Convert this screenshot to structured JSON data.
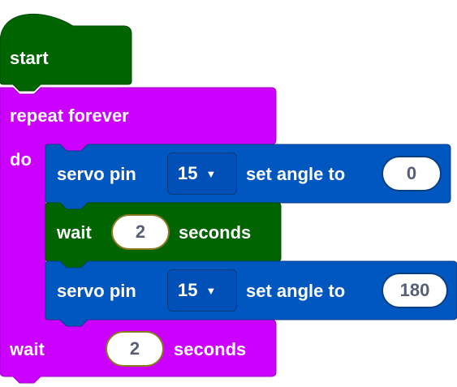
{
  "colors": {
    "event": "#006400",
    "loop": "#cc00ff",
    "servo": "#0057bf",
    "number_text": "#575e75"
  },
  "start_block": {
    "label": "start"
  },
  "repeat_block": {
    "label": "repeat forever",
    "do_label": "do"
  },
  "servo_block_1": {
    "label": "servo pin",
    "pin": "15",
    "set_label": "set angle to",
    "angle": "0"
  },
  "wait_block_inner": {
    "label": "wait",
    "value": "2",
    "unit": "seconds"
  },
  "servo_block_2": {
    "label": "servo pin",
    "pin": "15",
    "set_label": "set angle to",
    "angle": "180"
  },
  "wait_block_outer": {
    "label": "wait",
    "value": "2",
    "unit": "seconds"
  },
  "icons": {
    "dropdown": "caret-down-icon"
  }
}
